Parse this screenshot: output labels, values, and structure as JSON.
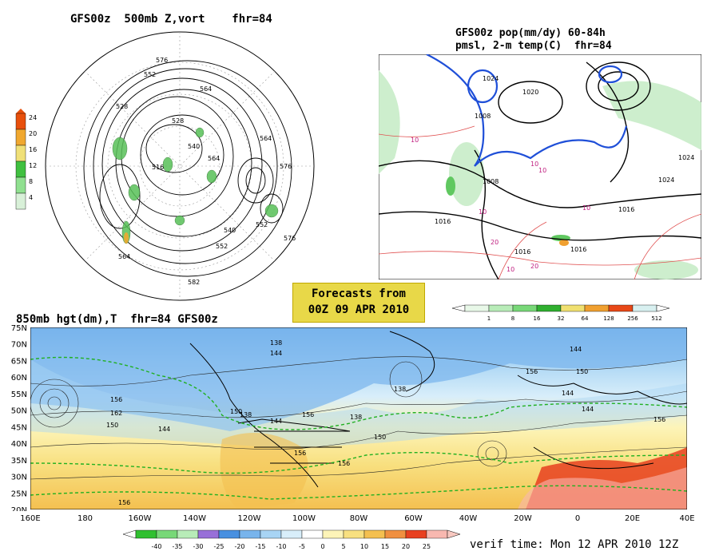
{
  "panel_a": {
    "title": "GFS00z  500mb Z,vort    fhr=84",
    "scale_labels": [
      "24",
      "20",
      "16",
      "12",
      "8",
      "4"
    ],
    "scale_colors": [
      "#e8500c",
      "#f0a830",
      "#f0e078",
      "#40c040",
      "#90e090",
      "#d8f0d8"
    ],
    "height_labels": [
      "576",
      "552",
      "564",
      "528",
      "528",
      "516",
      "540",
      "552",
      "564",
      "576",
      "552",
      "564",
      "540",
      "564",
      "576",
      "582"
    ]
  },
  "panel_b": {
    "title": "GFS00z pop(mm/dy) 60-84h",
    "subtitle": "pmsl, 2-m temp(C)  fhr=84",
    "scale_labels": [
      "1",
      "8",
      "16",
      "32",
      "64",
      "128",
      "256",
      "512"
    ],
    "scale_colors": [
      "#e8f8e8",
      "#b8ecb8",
      "#78d878",
      "#30b030",
      "#f0e070",
      "#f0a030",
      "#e84818",
      "#d8f0f0"
    ],
    "pressure_labels": [
      "1024",
      "1020",
      "1008",
      "1008",
      "1024",
      "1016",
      "1016",
      "1016",
      "1024",
      "1016"
    ],
    "temp_labels": [
      "10",
      "10",
      "10",
      "10",
      "10",
      "20",
      "20",
      "10"
    ]
  },
  "forecast_box": {
    "line1": "Forecasts from",
    "line2": "00Z 09 APR 2010"
  },
  "panel_c": {
    "title": "850mb hgt(dm),T  fhr=84 GFS00z",
    "lat_labels": [
      "75N",
      "70N",
      "65N",
      "60N",
      "55N",
      "50N",
      "45N",
      "40N",
      "35N",
      "30N",
      "25N",
      "20N"
    ],
    "lon_labels": [
      "160E",
      "180",
      "160W",
      "140W",
      "120W",
      "100W",
      "80W",
      "60W",
      "40W",
      "20W",
      "0",
      "20E",
      "40E"
    ],
    "height_labels": [
      "138",
      "144",
      "156",
      "162",
      "150",
      "138",
      "144",
      "156",
      "150",
      "156",
      "144",
      "156",
      "138",
      "144",
      "150",
      "144",
      "156",
      "138",
      "150",
      "144",
      "156",
      "156"
    ],
    "scale_labels": [
      "-40",
      "-35",
      "-30",
      "-25",
      "-20",
      "-15",
      "-10",
      "-5",
      "0",
      "5",
      "10",
      "15",
      "20",
      "25"
    ],
    "scale_colors": [
      "#30c030",
      "#78d878",
      "#b8ecb8",
      "#9870d8",
      "#4890e0",
      "#78b4ec",
      "#a8d4f4",
      "#d8eefa",
      "#ffffff",
      "#fdf4b8",
      "#f8e080",
      "#f4c050",
      "#f09040",
      "#e84020",
      "#f8b8b0"
    ]
  },
  "verif_time": "verif time: Mon 12 APR 2010 12Z"
}
